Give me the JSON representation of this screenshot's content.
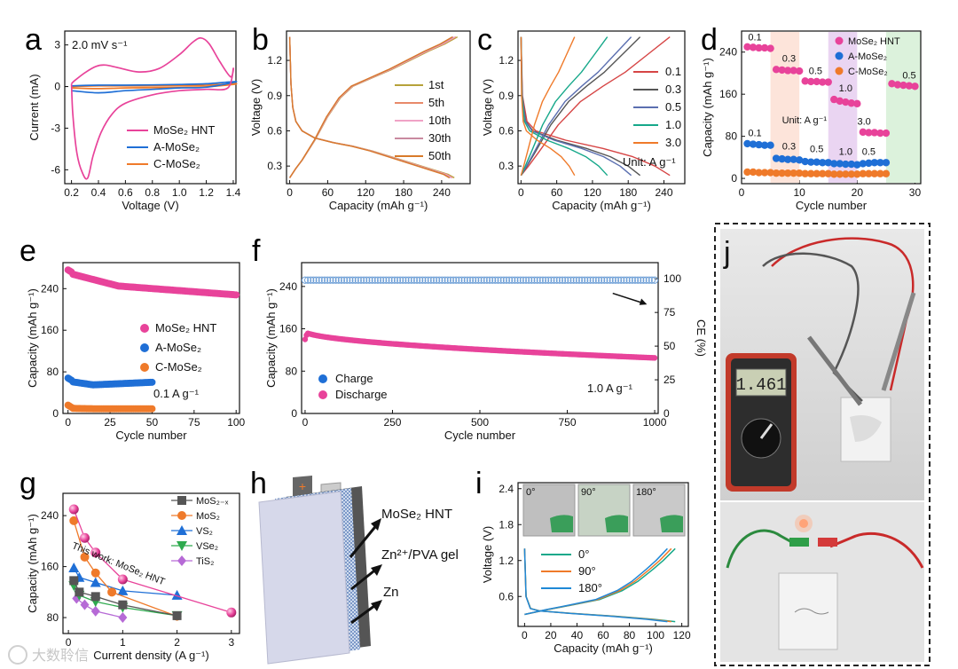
{
  "colors": {
    "pink": "#e8439a",
    "blue": "#1f6fd6",
    "orange": "#ef7a2a",
    "teal": "#16a88a",
    "gray": "#555555",
    "lightblue": "#6e9fd6",
    "red": "#d64545",
    "magenta": "#cc33cc",
    "green_cell": "#2eaa4e"
  },
  "panel_labels": [
    "a",
    "b",
    "c",
    "d",
    "e",
    "f",
    "g",
    "h",
    "i",
    "j"
  ],
  "watermark": "大数聆信",
  "chart_data": [
    {
      "id": "a",
      "type": "line",
      "annotation": "2.0 mV s⁻¹",
      "xlabel": "Voltage (V)",
      "ylabel": "Current (mA)",
      "xlim": [
        0.15,
        1.42
      ],
      "ylim": [
        -7,
        4
      ],
      "xticks": [
        "0.2",
        "0.4",
        "0.6",
        "0.8",
        "1.0",
        "1.2",
        "1.4"
      ],
      "xtick_values": [
        0.2,
        0.4,
        0.6,
        0.8,
        1.0,
        1.2,
        1.4
      ],
      "yticks": [
        "3",
        "0",
        "-3",
        "-6"
      ],
      "ytick_values": [
        3,
        0,
        -3,
        -6
      ],
      "legend": [
        "MoSe₂ HNT",
        "A-MoSe₂",
        "C-MoSe₂"
      ],
      "series": [
        {
          "name": "MoSe₂ HNT",
          "color": "#e8439a",
          "x": [
            0.2,
            0.22,
            0.3,
            0.38,
            0.45,
            0.55,
            0.7,
            0.85,
            1.0,
            1.1,
            1.16,
            1.22,
            1.3,
            1.38,
            1.4,
            1.36,
            1.2,
            1.0,
            0.8,
            0.6,
            0.5,
            0.42,
            0.36,
            0.32,
            0.28,
            0.24,
            0.21,
            0.2
          ],
          "y": [
            0.2,
            0.4,
            1.0,
            1.45,
            1.55,
            1.35,
            1.05,
            1.3,
            2.3,
            3.2,
            3.5,
            3.1,
            1.8,
            0.7,
            1.3,
            -0.1,
            -0.2,
            -0.3,
            -0.6,
            -1.2,
            -2.0,
            -3.3,
            -5.0,
            -6.6,
            -6.2,
            -4.8,
            -2.0,
            0.2
          ]
        },
        {
          "name": "A-MoSe₂",
          "color": "#1f6fd6",
          "x": [
            0.2,
            0.4,
            0.6,
            0.8,
            1.0,
            1.2,
            1.4,
            1.4,
            1.2,
            1.0,
            0.8,
            0.6,
            0.4,
            0.2
          ],
          "y": [
            0.05,
            0.1,
            0.1,
            0.12,
            0.15,
            0.2,
            0.35,
            0.3,
            -0.05,
            -0.1,
            -0.2,
            -0.3,
            -0.45,
            -0.3
          ]
        },
        {
          "name": "C-MoSe₂",
          "color": "#ef7a2a",
          "x": [
            0.2,
            0.4,
            0.6,
            0.8,
            1.0,
            1.2,
            1.4,
            1.4,
            1.2,
            1.0,
            0.8,
            0.6,
            0.4,
            0.2
          ],
          "y": [
            0.0,
            0.05,
            0.05,
            0.05,
            0.08,
            0.1,
            0.2,
            0.15,
            -0.02,
            -0.05,
            -0.08,
            -0.1,
            -0.15,
            -0.1
          ]
        }
      ]
    },
    {
      "id": "b",
      "type": "line",
      "xlabel": "Capacity (mAh g⁻¹)",
      "ylabel": "Voltage (V)",
      "xlim": [
        -5,
        285
      ],
      "ylim": [
        0.15,
        1.45
      ],
      "xticks": [
        "0",
        "60",
        "120",
        "180",
        "240"
      ],
      "xtick_values": [
        0,
        60,
        120,
        180,
        240
      ],
      "yticks": [
        "0.3",
        "0.6",
        "0.9",
        "1.2"
      ],
      "ytick_values": [
        0.3,
        0.6,
        0.9,
        1.2
      ],
      "legend": [
        "1st",
        "5th",
        "10th",
        "30th",
        "50th"
      ],
      "charge_x": [
        0,
        10,
        20,
        40,
        60,
        80,
        100,
        130,
        160,
        190,
        220,
        245,
        265
      ],
      "charge_y": [
        0.2,
        0.28,
        0.35,
        0.52,
        0.72,
        0.88,
        0.98,
        1.05,
        1.12,
        1.2,
        1.28,
        1.34,
        1.4
      ],
      "discharge_x": [
        0,
        2,
        5,
        10,
        20,
        40,
        70,
        100,
        130,
        160,
        190,
        220,
        250,
        260
      ],
      "discharge_y": [
        1.4,
        1.0,
        0.8,
        0.68,
        0.6,
        0.54,
        0.5,
        0.47,
        0.43,
        0.38,
        0.33,
        0.28,
        0.23,
        0.2
      ],
      "series": [
        {
          "name": "1st",
          "color": "#b6a23a",
          "scale": 1.0
        },
        {
          "name": "5th",
          "color": "#e88a6a",
          "scale": 0.99
        },
        {
          "name": "10th",
          "color": "#f0a3c6",
          "scale": 0.985
        },
        {
          "name": "30th",
          "color": "#c98aa0",
          "scale": 0.975
        },
        {
          "name": "50th",
          "color": "#d87a2a",
          "scale": 0.97
        }
      ]
    },
    {
      "id": "c",
      "type": "line",
      "xlabel": "Capacity (mAh g⁻¹)",
      "ylabel": "Voltage (V)",
      "unit_note": "Unit: A g⁻¹",
      "xlim": [
        -5,
        275
      ],
      "ylim": [
        0.15,
        1.45
      ],
      "xticks": [
        "0",
        "60",
        "120",
        "180",
        "240"
      ],
      "xtick_values": [
        0,
        60,
        120,
        180,
        240
      ],
      "yticks": [
        "0.3",
        "0.6",
        "0.9",
        "1.2"
      ],
      "ytick_values": [
        0.3,
        0.6,
        0.9,
        1.2
      ],
      "legend": [
        "0.1",
        "0.3",
        "0.5",
        "1.0",
        "3.0"
      ],
      "series": [
        {
          "name": "0.1",
          "color": "#d64545",
          "cap": 250
        },
        {
          "name": "0.3",
          "color": "#555555",
          "cap": 200
        },
        {
          "name": "0.5",
          "color": "#5b6fb0",
          "cap": 185
        },
        {
          "name": "1.0",
          "color": "#16a88a",
          "cap": 145
        },
        {
          "name": "3.0",
          "color": "#ef7a2a",
          "cap": 90
        }
      ]
    },
    {
      "id": "d",
      "type": "scatter",
      "xlabel": "Cycle number",
      "ylabel": "Capacity (mAh g⁻¹)",
      "unit_note": "Unit: A g⁻¹",
      "xlim": [
        0,
        31
      ],
      "ylim": [
        -10,
        280
      ],
      "xticks": [
        "0",
        "10",
        "20",
        "30"
      ],
      "xtick_values": [
        0,
        10,
        20,
        30
      ],
      "yticks": [
        "0",
        "80",
        "160",
        "240"
      ],
      "ytick_values": [
        0,
        80,
        160,
        240
      ],
      "legend": [
        "MoSe₂ HNT",
        "A-MoSe₂",
        "C-MoSe₂"
      ],
      "rate_labels_top": [
        "0.1",
        "0.3",
        "0.5",
        "1.0",
        "3.0",
        "0.5"
      ],
      "rate_labels_bottom": [
        "0.1",
        "0.3",
        "0.5",
        "1.0",
        "0.5"
      ],
      "series": [
        {
          "name": "MoSe₂ HNT",
          "color": "#e8439a",
          "values": [
            250,
            249,
            248,
            248,
            247,
            207,
            206,
            205,
            205,
            204,
            185,
            184,
            184,
            183,
            183,
            150,
            147,
            145,
            143,
            142,
            88,
            87,
            87,
            86,
            86,
            180,
            178,
            177,
            176,
            175
          ]
        },
        {
          "name": "A-MoSe₂",
          "color": "#1f6fd6",
          "values": [
            66,
            65,
            64,
            63,
            63,
            38,
            37,
            36,
            36,
            35,
            32,
            31,
            31,
            30,
            30,
            28,
            28,
            27,
            27,
            26,
            28,
            29,
            30,
            30,
            30
          ]
        },
        {
          "name": "C-MoSe₂",
          "color": "#ef7a2a",
          "values": [
            12,
            12,
            11,
            11,
            11,
            10,
            10,
            10,
            10,
            10,
            9,
            9,
            9,
            9,
            9,
            8,
            8,
            8,
            8,
            8,
            9,
            9,
            9,
            9,
            9
          ]
        }
      ]
    },
    {
      "id": "e",
      "type": "scatter",
      "xlabel": "Cycle number",
      "ylabel": "Capacity (mAh g⁻¹)",
      "annotation": "0.1 A g⁻¹",
      "xlim": [
        -3,
        102
      ],
      "ylim": [
        0,
        290
      ],
      "xticks": [
        "0",
        "25",
        "50",
        "75",
        "100"
      ],
      "xtick_values": [
        0,
        25,
        50,
        75,
        100
      ],
      "yticks": [
        "0",
        "80",
        "160",
        "240"
      ],
      "ytick_values": [
        0,
        80,
        160,
        240
      ],
      "legend": [
        "MoSe₂ HNT",
        "A-MoSe₂",
        "C-MoSe₂"
      ],
      "series": [
        {
          "name": "MoSe₂ HNT",
          "color": "#e8439a",
          "x_end": 100,
          "start": 270,
          "mid": 245,
          "end": 228
        },
        {
          "name": "A-MoSe₂",
          "color": "#1f6fd6",
          "x_end": 50,
          "start": 62,
          "mid": 55,
          "end": 60
        },
        {
          "name": "C-MoSe₂",
          "color": "#ef7a2a",
          "x_end": 50,
          "start": 10,
          "mid": 9,
          "end": 9
        }
      ]
    },
    {
      "id": "f",
      "type": "scatter",
      "xlabel": "Cycle number",
      "ylabel": "Capacity (mAh g⁻¹)",
      "y2label": "CE (%)",
      "annotation": "1.0 A g⁻¹",
      "xlim": [
        -10,
        1010
      ],
      "ylim": [
        0,
        285
      ],
      "y2lim": [
        0,
        112
      ],
      "xticks": [
        "0",
        "250",
        "500",
        "750",
        "1000"
      ],
      "xtick_values": [
        0,
        250,
        500,
        750,
        1000
      ],
      "yticks": [
        "0",
        "80",
        "160",
        "240"
      ],
      "ytick_values": [
        0,
        80,
        160,
        240
      ],
      "y2ticks": [
        "0",
        "25",
        "50",
        "75",
        "100"
      ],
      "y2tick_values": [
        0,
        25,
        50,
        75,
        100
      ],
      "legend": [
        "Charge",
        "Discharge"
      ],
      "series": [
        {
          "name": "Charge",
          "color": "#6e9fd6",
          "axis": "right",
          "value": 99
        },
        {
          "name": "Discharge",
          "color": "#e8439a",
          "axis": "left",
          "start": 155,
          "end": 105
        }
      ]
    },
    {
      "id": "g",
      "type": "line",
      "xlabel": "Current density (A g⁻¹)",
      "ylabel": "Capacity (mAh g⁻¹)",
      "annotation": "This work: MoSe₂ HNT",
      "xlim": [
        -0.1,
        3.15
      ],
      "ylim": [
        55,
        275
      ],
      "xticks": [
        "0",
        "1",
        "2",
        "3"
      ],
      "xtick_values": [
        0,
        1,
        2,
        3
      ],
      "yticks": [
        "80",
        "160",
        "240"
      ],
      "ytick_values": [
        80,
        160,
        240
      ],
      "legend": [
        "MoS₂₋ₓ",
        "MoS₂",
        "VS₂",
        "VSe₂",
        "TiS₂"
      ],
      "series": [
        {
          "name": "This work: MoSe₂ HNT",
          "color": "#e8439a",
          "marker": "sphere",
          "x": [
            0.1,
            0.3,
            0.5,
            1.0,
            3.0
          ],
          "y": [
            250,
            205,
            182,
            140,
            88
          ]
        },
        {
          "name": "MoS₂₋ₓ",
          "color": "#555555",
          "marker": "square",
          "x": [
            0.1,
            0.2,
            0.5,
            1.0,
            2.0
          ],
          "y": [
            138,
            120,
            113,
            100,
            83
          ]
        },
        {
          "name": "MoS₂",
          "color": "#ef7a2a",
          "marker": "circle",
          "x": [
            0.1,
            0.3,
            0.5,
            0.8,
            2.0
          ],
          "y": [
            232,
            175,
            150,
            120,
            82
          ]
        },
        {
          "name": "VS₂",
          "color": "#1f6fd6",
          "marker": "triangle",
          "x": [
            0.1,
            0.2,
            0.5,
            1.0,
            2.0
          ],
          "y": [
            158,
            143,
            135,
            122,
            115
          ]
        },
        {
          "name": "VSe₂",
          "color": "#2eaa4e",
          "marker": "triangle-down",
          "x": [
            0.1,
            0.2,
            0.5,
            1.0,
            2.0
          ],
          "y": [
            130,
            115,
            105,
            96,
            83
          ]
        },
        {
          "name": "TiS₂",
          "color": "#b66ad6",
          "marker": "diamond",
          "x": [
            0.15,
            0.3,
            0.5,
            1.0
          ],
          "y": [
            110,
            100,
            90,
            80
          ]
        }
      ]
    },
    {
      "id": "i",
      "type": "line",
      "xlabel": "Capacity (mAh g⁻¹)",
      "ylabel": "Voltage (V)",
      "xlim": [
        -5,
        125
      ],
      "ylim": [
        0.1,
        2.5
      ],
      "xticks": [
        "0",
        "20",
        "40",
        "60",
        "80",
        "100",
        "120"
      ],
      "xtick_values": [
        0,
        20,
        40,
        60,
        80,
        100,
        120
      ],
      "yticks": [
        "0.6",
        "1.2",
        "1.8",
        "2.4"
      ],
      "ytick_values": [
        0.6,
        1.2,
        1.8,
        2.4
      ],
      "legend": [
        "0°",
        "90°",
        "180°"
      ],
      "inset_labels": [
        "0°",
        "90°",
        "180°"
      ],
      "series": [
        {
          "name": "0°",
          "color": "#16a88a",
          "cap": 115
        },
        {
          "name": "90°",
          "color": "#ef7a2a",
          "cap": 112
        },
        {
          "name": "180°",
          "color": "#1f88d6",
          "cap": 109
        }
      ]
    }
  ],
  "panel_h": {
    "labels": [
      "MoSe₂ HNT",
      "Zn²⁺/PVA gel",
      "Zn"
    ],
    "terminal_plus": "+",
    "terminal_minus": "−"
  },
  "panel_j": {
    "meter_reading": "1.461"
  }
}
